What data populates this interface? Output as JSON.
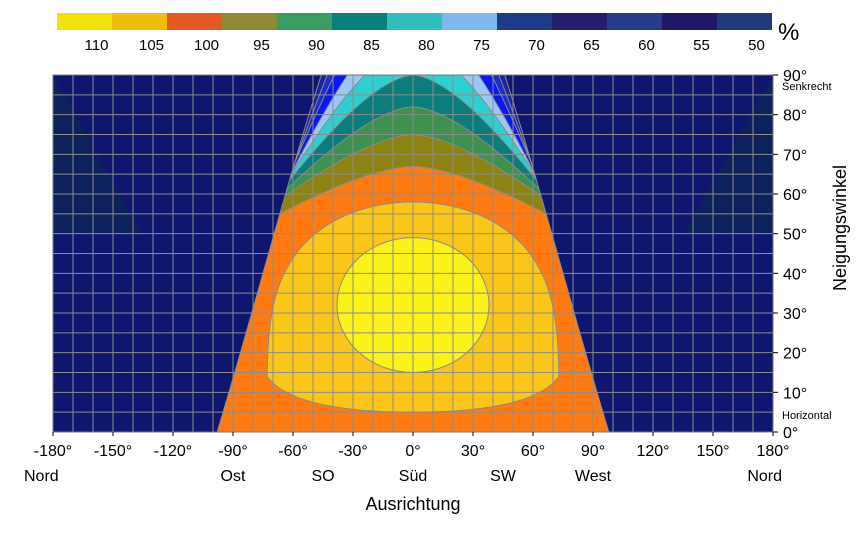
{
  "chart_data": {
    "type": "heatmap",
    "title": "",
    "xlabel": "Ausrichtung",
    "ylabel": "Neigungswinkel",
    "xlim": [
      -180,
      180
    ],
    "ylim": [
      0,
      90
    ],
    "grid": true,
    "x_ticks": [
      "-180°",
      "-150°",
      "-120°",
      "-90°",
      "-60°",
      "-30°",
      "0°",
      "30°",
      "60°",
      "90°",
      "120°",
      "150°",
      "180°"
    ],
    "x_tick_values": [
      -180,
      -150,
      -120,
      -90,
      -60,
      -30,
      0,
      30,
      60,
      90,
      120,
      150,
      180
    ],
    "x_direction_labels": [
      {
        "x": -180,
        "label": "Nord"
      },
      {
        "x": -90,
        "label": "Ost"
      },
      {
        "x": -45,
        "label": "SO"
      },
      {
        "x": 0,
        "label": "Süd"
      },
      {
        "x": 45,
        "label": "SW"
      },
      {
        "x": 90,
        "label": "West"
      },
      {
        "x": 180,
        "label": "Nord"
      }
    ],
    "y_ticks": [
      "0°",
      "10°",
      "20°",
      "30°",
      "40°",
      "50°",
      "60°",
      "70°",
      "80°",
      "90°"
    ],
    "y_tick_values": [
      0,
      10,
      20,
      30,
      40,
      50,
      60,
      70,
      80,
      90
    ],
    "y_annotations": [
      {
        "y": 90,
        "label": "Senkrecht"
      },
      {
        "y": 0,
        "label": "Horizontal"
      }
    ],
    "legend": {
      "position": "top",
      "unit": "%",
      "levels": [
        {
          "label": "110",
          "color": "#f1e20b"
        },
        {
          "label": "105",
          "color": "#f3bc0a"
        },
        {
          "label": "100",
          "color": "#e15a24"
        },
        {
          "label": "95",
          "color": "#8e8a35"
        },
        {
          "label": "90",
          "color": "#3a9d63"
        },
        {
          "label": "85",
          "color": "#087f7b"
        },
        {
          "label": "80",
          "color": "#33bebe"
        },
        {
          "label": "75",
          "color": "#7eb8ec"
        },
        {
          "label": "70",
          "color": "#1d3a8c"
        },
        {
          "label": "65",
          "color": "#231d6b"
        },
        {
          "label": "60",
          "color": "#263b8c"
        },
        {
          "label": "55",
          "color": "#1f1866"
        },
        {
          "label": "50",
          "color": "#223a78"
        }
      ]
    },
    "plot_colors_by_level": {
      "110": "#fbf21a",
      "105": "#fbc61a",
      "100": "#ff7b12",
      "95": "#8d8312",
      "90": "#3f9150",
      "85": "#0a7d7c",
      "80": "#2ecfd0",
      "75": "#9ac7f4",
      "70": "#0a18f5",
      "65": "#1d2ec9",
      "60": "#1c22a0",
      "55": "#0e1670",
      "50": "#0d2358"
    },
    "contour_tilt_at_south": [
      {
        "level": 100,
        "tilt": 0
      },
      {
        "level": 105,
        "tilt": 0
      },
      {
        "level": 110,
        "tilt": 16
      },
      {
        "level": 105,
        "tilt": 49
      },
      {
        "level": 100,
        "tilt": 59
      },
      {
        "level": 95,
        "tilt": 67
      },
      {
        "level": 90,
        "tilt": 75
      },
      {
        "level": 85,
        "tilt": 82
      },
      {
        "level": 80,
        "tilt": 90
      }
    ]
  }
}
